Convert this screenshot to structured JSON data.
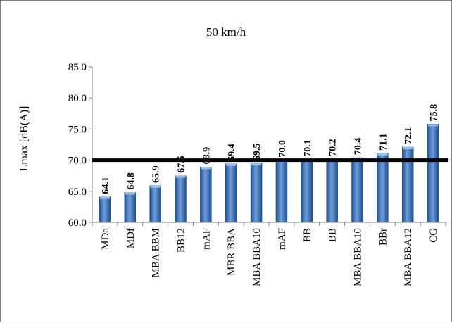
{
  "chart_data": {
    "type": "bar",
    "title": "50 km/h",
    "ylabel": "Lmax [dB(A)]",
    "xlabel": "",
    "ylim": [
      60,
      85
    ],
    "yticks": [
      "60.0",
      "65.0",
      "70.0",
      "75.0",
      "80.0",
      "85.0"
    ],
    "grid": false,
    "categories": [
      "MDa",
      "MDf",
      "MBA BBM",
      "BB12",
      "mAF",
      "MBR BBA",
      "MBA BBA10",
      "mAF",
      "BB",
      "BB",
      "MBA BBA10",
      "BBr",
      "MBA BBA12",
      "CG"
    ],
    "values": [
      64.1,
      64.8,
      65.9,
      67.5,
      68.9,
      69.4,
      69.5,
      70.0,
      70.1,
      70.2,
      70.4,
      71.1,
      72.1,
      75.8
    ],
    "value_labels": [
      "64.1",
      "64.8",
      "65.9",
      "67.5",
      "68.9",
      "69.4",
      "69.5",
      "70.0",
      "70.1",
      "70.2",
      "70.4",
      "71.1",
      "72.1",
      "75.8"
    ],
    "reference_line": 70.0,
    "colors": {
      "bar_light": "#6e9edb",
      "bar_dark": "#1f4e8c",
      "reference_line": "#000000"
    }
  }
}
